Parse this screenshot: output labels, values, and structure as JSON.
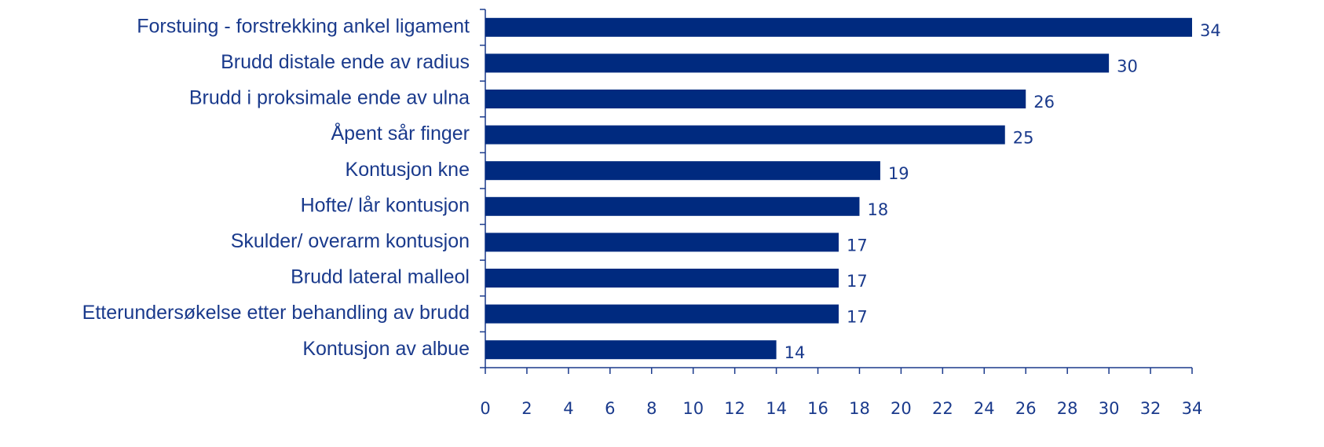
{
  "chart_data": {
    "type": "bar",
    "orientation": "horizontal",
    "categories": [
      "Forstuing - forstrekking ankel ligament",
      "Brudd distale ende av radius",
      "Brudd i proksimale ende av ulna",
      "Åpent sår finger",
      "Kontusjon kne",
      "Hofte/ lår kontusjon",
      "Skulder/ overarm kontusjon",
      "Brudd lateral malleol",
      "Etterundersøkelse etter behandling av brudd",
      "Kontusjon av albue"
    ],
    "values": [
      34,
      30,
      26,
      25,
      19,
      18,
      17,
      17,
      17,
      14
    ],
    "color": "#002a7f",
    "xlim": [
      0,
      34
    ],
    "xticks": [
      0,
      2,
      4,
      6,
      8,
      10,
      12,
      14,
      16,
      18,
      20,
      22,
      24,
      26,
      28,
      30,
      32,
      34
    ],
    "grid": false
  }
}
